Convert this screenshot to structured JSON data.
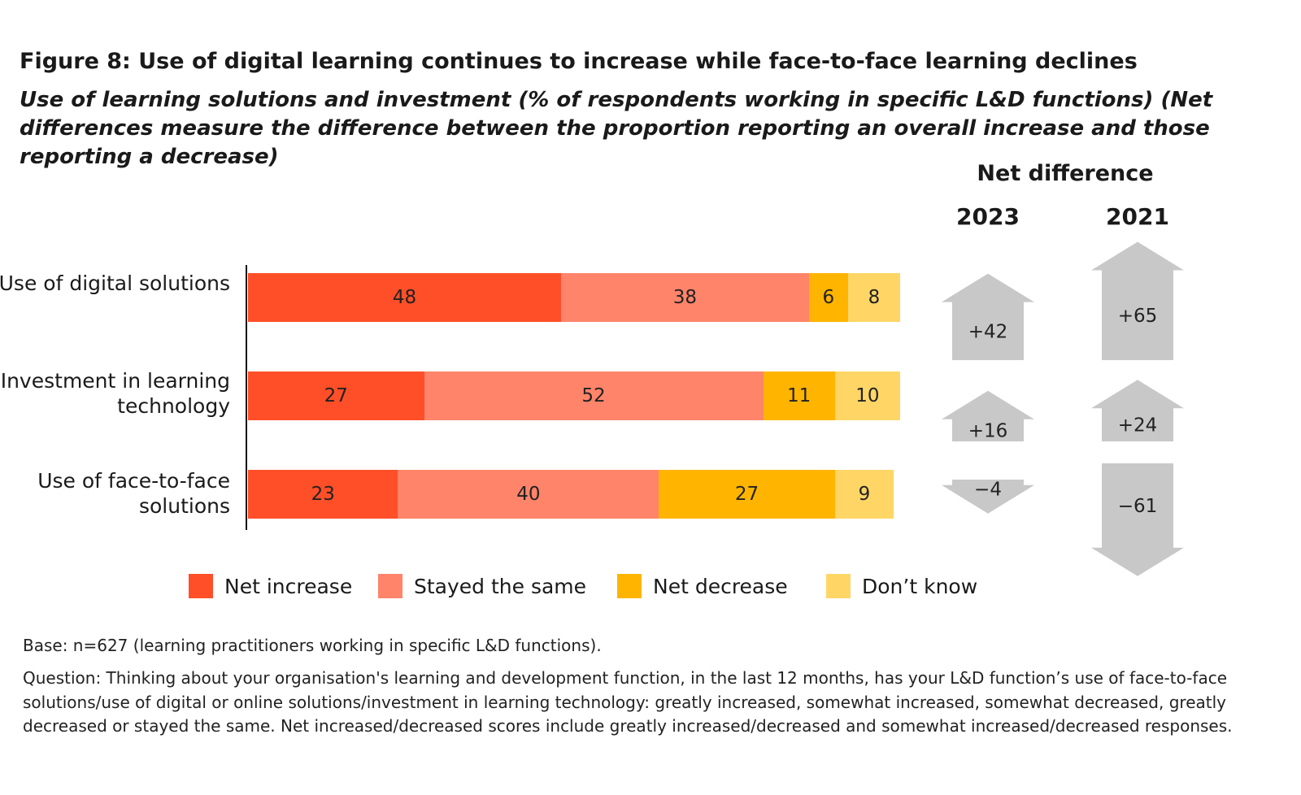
{
  "chart_data": {
    "type": "bar",
    "orientation": "horizontal",
    "stacked": true,
    "title": "Figure 8: Use of digital learning continues to increase while face-to-face learning declines",
    "subtitle": "Use of learning solutions and investment (% of respondents working in specific L&D functions) (Net differences measure the difference between the proportion reporting an overall increase and those reporting a decrease)",
    "categories": [
      "Use of digital solutions",
      "Investment in learning technology",
      "Use of face-to-face solutions"
    ],
    "series": [
      {
        "name": "Net increase",
        "color": "#ff4f28",
        "values": [
          48,
          27,
          23
        ]
      },
      {
        "name": "Stayed the same",
        "color": "#ff846a",
        "values": [
          38,
          52,
          40
        ]
      },
      {
        "name": "Net decrease",
        "color": "#ffb500",
        "values": [
          6,
          11,
          27
        ]
      },
      {
        "name": "Don’t know",
        "color": "#ffd666",
        "values": [
          8,
          10,
          9
        ]
      }
    ],
    "xlim": [
      0,
      100
    ],
    "legend_position": "bottom",
    "grid": false,
    "net_difference": {
      "heading": "Net difference",
      "arrow_color": "#c8c8c8",
      "years": [
        {
          "year": "2023",
          "values": [
            "+42",
            "+16",
            "−4"
          ],
          "numeric": [
            42,
            16,
            -4
          ]
        },
        {
          "year": "2021",
          "values": [
            "+65",
            "+24",
            "−61"
          ],
          "numeric": [
            65,
            24,
            -61
          ]
        }
      ]
    }
  },
  "footer": {
    "base": "Base: n=627 (learning practitioners working in specific L&D functions).",
    "question": "Question: Thinking about your organisation's learning and development function, in the last 12 months, has your L&D function’s use of face-to-face solutions/use of digital or online solutions/investment in learning technology: greatly increased, somewhat increased, somewhat decreased, greatly decreased or stayed the same. Net increased/decreased scores include greatly increased/decreased and somewhat increased/decreased responses."
  }
}
